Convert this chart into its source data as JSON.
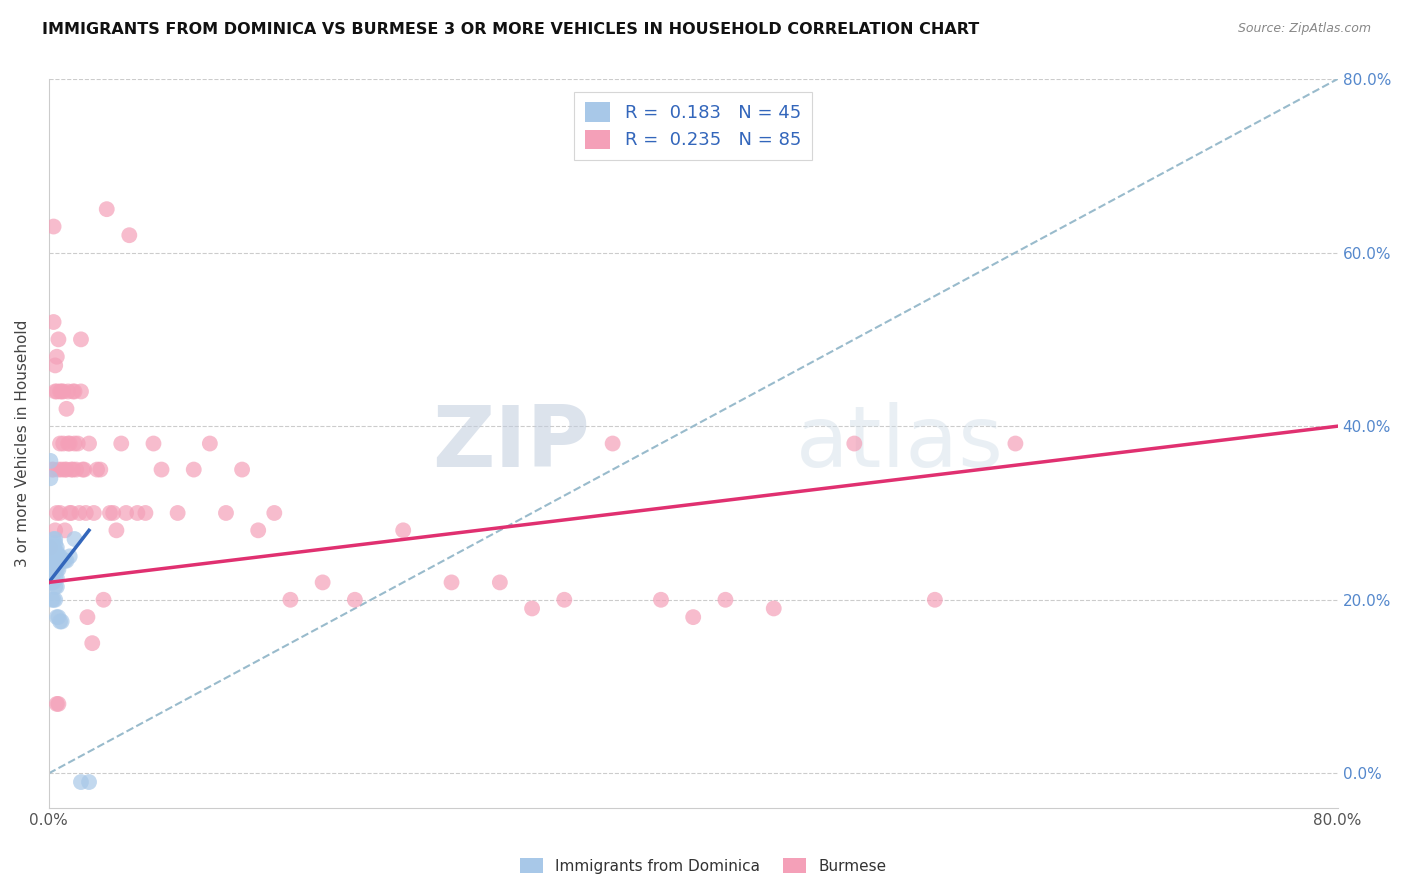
{
  "title": "IMMIGRANTS FROM DOMINICA VS BURMESE 3 OR MORE VEHICLES IN HOUSEHOLD CORRELATION CHART",
  "source": "Source: ZipAtlas.com",
  "ylabel": "3 or more Vehicles in Household",
  "legend1_label": "Immigrants from Dominica",
  "legend2_label": "Burmese",
  "R1": 0.183,
  "N1": 45,
  "R2": 0.235,
  "N2": 85,
  "color_dominica": "#a8c8e8",
  "color_burmese": "#f4a0b8",
  "line_color_dominica": "#3366bb",
  "line_color_burmese": "#e03070",
  "dashed_line_color": "#99bbcc",
  "watermark_zip": "ZIP",
  "watermark_atlas": "atlas",
  "xlim": [
    0.0,
    0.8
  ],
  "ylim": [
    -0.04,
    0.8
  ],
  "scatter_dominica_x": [
    0.001,
    0.001,
    0.002,
    0.002,
    0.002,
    0.002,
    0.002,
    0.003,
    0.003,
    0.003,
    0.003,
    0.003,
    0.003,
    0.003,
    0.004,
    0.004,
    0.004,
    0.004,
    0.004,
    0.004,
    0.004,
    0.004,
    0.005,
    0.005,
    0.005,
    0.005,
    0.005,
    0.005,
    0.005,
    0.006,
    0.006,
    0.006,
    0.006,
    0.007,
    0.007,
    0.007,
    0.008,
    0.008,
    0.009,
    0.01,
    0.011,
    0.013,
    0.016,
    0.02,
    0.025
  ],
  "scatter_dominica_y": [
    0.36,
    0.34,
    0.26,
    0.25,
    0.24,
    0.22,
    0.2,
    0.27,
    0.26,
    0.25,
    0.24,
    0.23,
    0.22,
    0.2,
    0.27,
    0.265,
    0.255,
    0.245,
    0.235,
    0.225,
    0.215,
    0.2,
    0.26,
    0.255,
    0.245,
    0.235,
    0.225,
    0.215,
    0.18,
    0.25,
    0.245,
    0.235,
    0.18,
    0.25,
    0.245,
    0.175,
    0.245,
    0.175,
    0.245,
    0.245,
    0.245,
    0.25,
    0.27,
    -0.01,
    -0.01
  ],
  "scatter_burmese_x": [
    0.001,
    0.002,
    0.003,
    0.003,
    0.004,
    0.004,
    0.005,
    0.005,
    0.006,
    0.006,
    0.007,
    0.007,
    0.007,
    0.008,
    0.008,
    0.009,
    0.009,
    0.01,
    0.01,
    0.011,
    0.011,
    0.012,
    0.012,
    0.013,
    0.013,
    0.014,
    0.014,
    0.015,
    0.015,
    0.016,
    0.016,
    0.017,
    0.018,
    0.019,
    0.02,
    0.02,
    0.021,
    0.022,
    0.023,
    0.024,
    0.025,
    0.027,
    0.028,
    0.03,
    0.032,
    0.034,
    0.036,
    0.038,
    0.04,
    0.042,
    0.045,
    0.048,
    0.05,
    0.055,
    0.06,
    0.065,
    0.07,
    0.08,
    0.09,
    0.1,
    0.11,
    0.12,
    0.13,
    0.14,
    0.15,
    0.17,
    0.19,
    0.22,
    0.25,
    0.28,
    0.3,
    0.32,
    0.35,
    0.38,
    0.4,
    0.42,
    0.45,
    0.5,
    0.55,
    0.6,
    0.003,
    0.004,
    0.005,
    0.005,
    0.006
  ],
  "scatter_burmese_y": [
    0.26,
    0.35,
    0.52,
    0.35,
    0.44,
    0.28,
    0.44,
    0.3,
    0.5,
    0.35,
    0.44,
    0.38,
    0.3,
    0.44,
    0.35,
    0.44,
    0.38,
    0.35,
    0.28,
    0.42,
    0.35,
    0.44,
    0.38,
    0.38,
    0.3,
    0.35,
    0.3,
    0.44,
    0.35,
    0.44,
    0.38,
    0.35,
    0.38,
    0.3,
    0.5,
    0.44,
    0.35,
    0.35,
    0.3,
    0.18,
    0.38,
    0.15,
    0.3,
    0.35,
    0.35,
    0.2,
    0.65,
    0.3,
    0.3,
    0.28,
    0.38,
    0.3,
    0.62,
    0.3,
    0.3,
    0.38,
    0.35,
    0.3,
    0.35,
    0.38,
    0.3,
    0.35,
    0.28,
    0.3,
    0.2,
    0.22,
    0.2,
    0.28,
    0.22,
    0.22,
    0.19,
    0.2,
    0.38,
    0.2,
    0.18,
    0.2,
    0.19,
    0.38,
    0.2,
    0.38,
    0.63,
    0.47,
    0.48,
    0.08,
    0.08
  ]
}
